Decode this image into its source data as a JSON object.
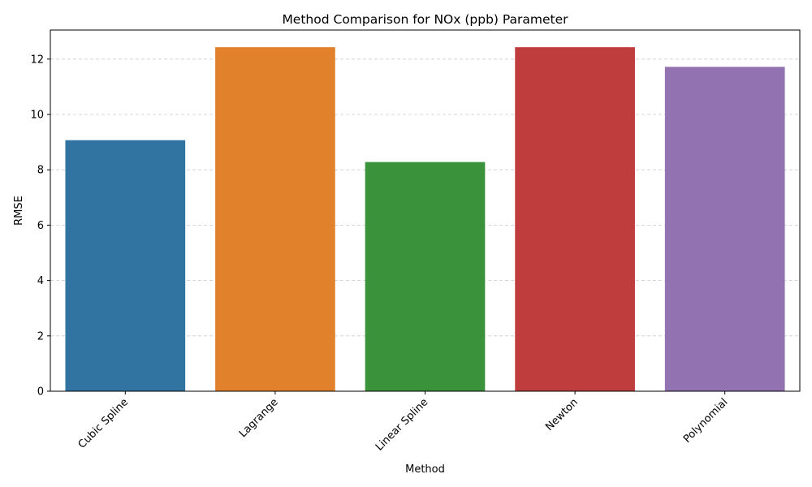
{
  "chart_data": {
    "type": "bar",
    "title": "Method Comparison for NOx (ppb) Parameter",
    "xlabel": "Method",
    "ylabel": "RMSE",
    "categories": [
      "Cubic Spline",
      "Lagrange",
      "Linear Spline",
      "Newton",
      "Polynomial"
    ],
    "values": [
      9.07,
      12.43,
      8.28,
      12.43,
      11.72
    ],
    "colors": [
      "#3274a1",
      "#e1812c",
      "#3a923a",
      "#c03d3e",
      "#9372b2"
    ],
    "ylim": [
      0,
      13.05
    ],
    "yticks": [
      0,
      2,
      4,
      6,
      8,
      10,
      12
    ],
    "grid": "y-dashed",
    "legend": "none"
  }
}
